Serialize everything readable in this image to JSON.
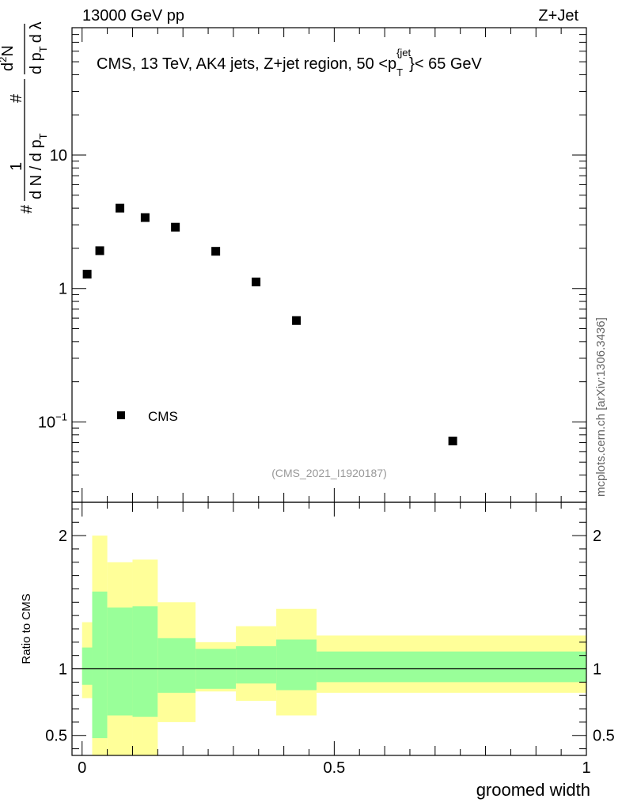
{
  "header": {
    "left": "13000 GeV pp",
    "right": "Z+Jet"
  },
  "side_label": "mcplots.cern.ch [arXiv:1306.3436]",
  "chart_data": [
    {
      "type": "scatter",
      "name": "main",
      "title": "CMS, 13 TeV, AK4 jets, Z+jet region, 50 <p",
      "title_sub": "T",
      "title_sup": "{jet",
      "title_tail": "}< 65 GeV",
      "ylabel_parts": [
        "#",
        "1",
        "d N / d p",
        "T",
        "#",
        "d",
        "2",
        "N",
        "d p",
        "T",
        "d λ"
      ],
      "yscale": "log",
      "ylim": [
        0.025,
        90
      ],
      "xlim": [
        -0.02,
        1.0
      ],
      "yticks": [
        {
          "value": 0.1,
          "label": "10",
          "exp": "−1"
        },
        {
          "value": 1,
          "label": "1"
        },
        {
          "value": 10,
          "label": "10"
        }
      ],
      "legend": {
        "label": "CMS",
        "position": "bottom-left"
      },
      "watermark": "(CMS_2021_I1920187)",
      "series": [
        {
          "name": "CMS",
          "x": [
            0.01,
            0.035,
            0.075,
            0.125,
            0.185,
            0.265,
            0.345,
            0.425,
            0.735
          ],
          "y": [
            1.28,
            1.92,
            4.0,
            3.4,
            2.88,
            1.9,
            1.12,
            0.575,
            0.072
          ]
        }
      ]
    },
    {
      "type": "area",
      "name": "ratio",
      "ylabel": "Ratio to CMS",
      "xlabel": "groomed width",
      "ylim": [
        0.35,
        2.25
      ],
      "xlim": [
        -0.02,
        1.0
      ],
      "xticks": [
        {
          "value": 0,
          "label": "0"
        },
        {
          "value": 0.5,
          "label": "0.5"
        },
        {
          "value": 1,
          "label": "1"
        }
      ],
      "yticks": [
        {
          "value": 0.5,
          "label": "0.5"
        },
        {
          "value": 1,
          "label": "1"
        },
        {
          "value": 2,
          "label": "2"
        }
      ],
      "bins": [
        {
          "x0": 0.0,
          "x1": 0.02,
          "g": [
            0.88,
            1.16
          ],
          "y": [
            0.78,
            1.35
          ]
        },
        {
          "x0": 0.02,
          "x1": 0.05,
          "g": [
            0.48,
            1.58
          ],
          "y": [
            0.35,
            2.0
          ]
        },
        {
          "x0": 0.05,
          "x1": 0.1,
          "g": [
            0.65,
            1.46
          ],
          "y": [
            0.35,
            1.8
          ]
        },
        {
          "x0": 0.1,
          "x1": 0.15,
          "g": [
            0.64,
            1.47
          ],
          "y": [
            0.35,
            1.82
          ]
        },
        {
          "x0": 0.15,
          "x1": 0.225,
          "g": [
            0.82,
            1.23
          ],
          "y": [
            0.6,
            1.5
          ]
        },
        {
          "x0": 0.225,
          "x1": 0.305,
          "g": [
            0.85,
            1.15
          ],
          "y": [
            0.83,
            1.2
          ]
        },
        {
          "x0": 0.305,
          "x1": 0.385,
          "g": [
            0.89,
            1.17
          ],
          "y": [
            0.76,
            1.32
          ]
        },
        {
          "x0": 0.385,
          "x1": 0.465,
          "g": [
            0.84,
            1.22
          ],
          "y": [
            0.65,
            1.45
          ]
        },
        {
          "x0": 0.465,
          "x1": 1.0,
          "g": [
            0.9,
            1.13
          ],
          "y": [
            0.82,
            1.25
          ]
        }
      ],
      "colors": {
        "inner": "#99ff99",
        "outer": "#ffff99",
        "reference": "#000000"
      }
    }
  ]
}
